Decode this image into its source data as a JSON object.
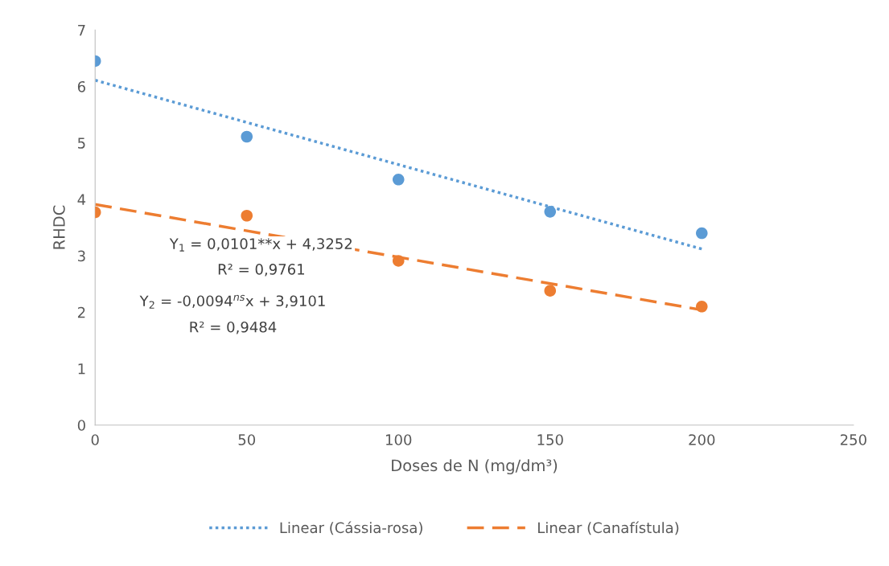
{
  "chart_data": {
    "type": "scatter",
    "xlabel": "Doses de N (mg/dm³)",
    "ylabel": "RHDC",
    "xlim": [
      0,
      250
    ],
    "xticks": [
      0,
      50,
      100,
      150,
      200,
      250
    ],
    "ylim": [
      0,
      7
    ],
    "yticks": [
      0,
      1,
      2,
      3,
      4,
      5,
      6,
      7
    ],
    "grid": false,
    "legend": "bottom",
    "series": [
      {
        "color": "#5b9bd5",
        "marker": "circle",
        "x": [
          0,
          50,
          100,
          150,
          200
        ],
        "values": [
          6.45,
          5.11,
          4.35,
          3.78,
          3.4
        ]
      },
      {
        "color": "#ed7d31",
        "marker": "circle",
        "x": [
          0,
          50,
          100,
          150,
          200
        ],
        "values": [
          3.77,
          3.71,
          2.91,
          2.38,
          2.1
        ]
      },
      {
        "type": "line",
        "name": "Linear (Cássia-rosa)",
        "color": "#5b9bd5",
        "line_style": "dotted",
        "marker": "none",
        "x": [
          0,
          200
        ],
        "values": [
          6.11,
          3.12
        ]
      },
      {
        "type": "line",
        "name": "Linear (Canafístula)",
        "color": "#ed7d31",
        "line_style": "dashed",
        "marker": "none",
        "x": [
          0,
          200
        ],
        "values": [
          3.91,
          2.04
        ]
      }
    ],
    "annotations": [
      "Y$_{1}$ = 0,0101**x + 4,3252",
      "R² = 0,9761",
      "Y$_{2}$ = -0,0094$^{ns}$x + 3,9101",
      "R² = 0,9484"
    ]
  }
}
